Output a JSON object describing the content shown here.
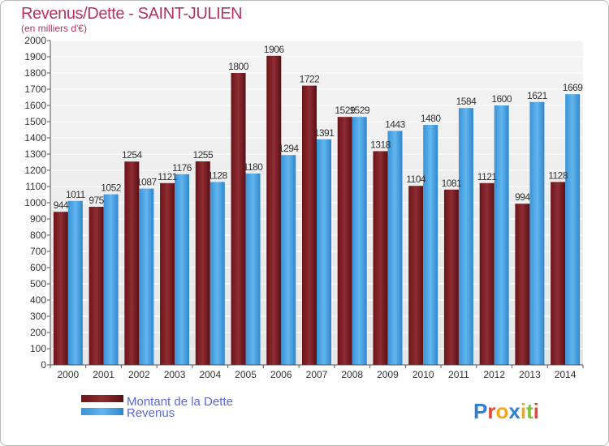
{
  "chart_data": {
    "type": "bar",
    "title": "Revenus/Dette - SAINT-JULIEN",
    "subtitle": "(en milliers d'€)",
    "categories": [
      "2000",
      "2001",
      "2002",
      "2003",
      "2004",
      "2005",
      "2006",
      "2007",
      "2008",
      "2009",
      "2010",
      "2011",
      "2012",
      "2013",
      "2014"
    ],
    "series": [
      {
        "name": "Montant de la Dette",
        "color": "#7a1e24",
        "values": [
          944,
          975,
          1254,
          1121,
          1255,
          1800,
          1906,
          1722,
          1529,
          1318,
          1104,
          1081,
          1121,
          994,
          1128
        ]
      },
      {
        "name": "Revenus",
        "color": "#4aa3e2",
        "values": [
          1011,
          1052,
          1087,
          1176,
          1128,
          1180,
          1294,
          1391,
          1529,
          1443,
          1480,
          1584,
          1600,
          1621,
          1669
        ]
      }
    ],
    "ylim": [
      0,
      2000
    ],
    "ytick_step": 100,
    "grid": true,
    "legend_position": "bottom-left"
  },
  "logo": {
    "text": "Proxiti",
    "colors": [
      "#2e7fd4",
      "#e8462f",
      "#f2a61b",
      "#2e7fd4",
      "#f2a61b",
      "#7bbf3a",
      "#e8462f"
    ]
  }
}
